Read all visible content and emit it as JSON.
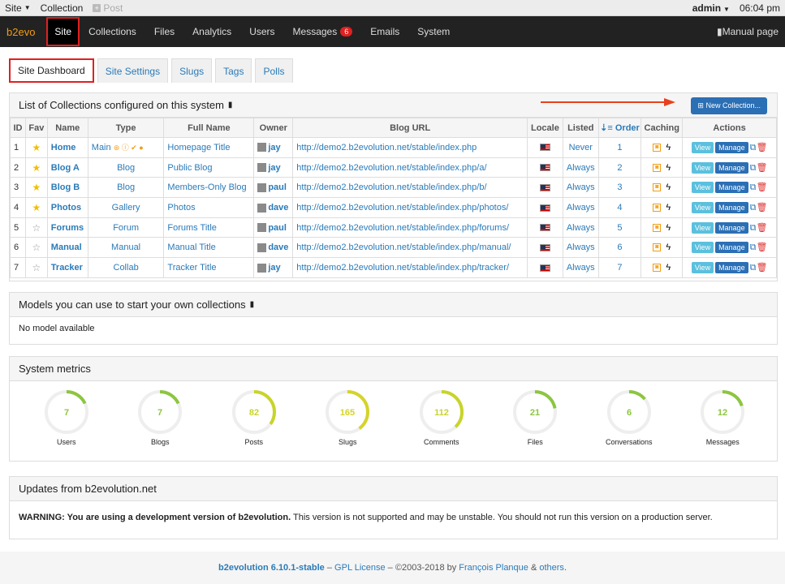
{
  "topbar": {
    "site": "Site",
    "collection": "Collection",
    "post": "Post",
    "user": "admin",
    "time": "06:04 pm"
  },
  "navbar": {
    "brand": "b2evo",
    "items": [
      "Site",
      "Collections",
      "Files",
      "Analytics",
      "Users",
      "Messages",
      "Emails",
      "System"
    ],
    "messages_count": "6",
    "manual": "Manual page"
  },
  "tabs": [
    "Site Dashboard",
    "Site Settings",
    "Slugs",
    "Tags",
    "Polls"
  ],
  "collections": {
    "title": "List of Collections configured on this system",
    "new_button": "New Collection...",
    "headers": [
      "ID",
      "Fav",
      "Name",
      "Type",
      "Full Name",
      "Owner",
      "Blog URL",
      "Locale",
      "Listed",
      "Order",
      "Caching",
      "Actions"
    ],
    "rows": [
      {
        "id": "1",
        "fav": "★",
        "name": "Home",
        "type": "Main",
        "fullname": "Homepage Title",
        "owner": "jay",
        "url": "http://demo2.b2evolution.net/stable/index.php",
        "listed": "Never",
        "order": "1"
      },
      {
        "id": "2",
        "fav": "★",
        "name": "Blog A",
        "type": "Blog",
        "fullname": "Public Blog",
        "owner": "jay",
        "url": "http://demo2.b2evolution.net/stable/index.php/a/",
        "listed": "Always",
        "order": "2"
      },
      {
        "id": "3",
        "fav": "★",
        "name": "Blog B",
        "type": "Blog",
        "fullname": "Members-Only Blog",
        "owner": "paul",
        "url": "http://demo2.b2evolution.net/stable/index.php/b/",
        "listed": "Always",
        "order": "3"
      },
      {
        "id": "4",
        "fav": "★",
        "name": "Photos",
        "type": "Gallery",
        "fullname": "Photos",
        "owner": "dave",
        "url": "http://demo2.b2evolution.net/stable/index.php/photos/",
        "listed": "Always",
        "order": "4"
      },
      {
        "id": "5",
        "fav": "☆",
        "name": "Forums",
        "type": "Forum",
        "fullname": "Forums Title",
        "owner": "paul",
        "url": "http://demo2.b2evolution.net/stable/index.php/forums/",
        "listed": "Always",
        "order": "5"
      },
      {
        "id": "6",
        "fav": "☆",
        "name": "Manual",
        "type": "Manual",
        "fullname": "Manual Title",
        "owner": "dave",
        "url": "http://demo2.b2evolution.net/stable/index.php/manual/",
        "listed": "Always",
        "order": "6"
      },
      {
        "id": "7",
        "fav": "☆",
        "name": "Tracker",
        "type": "Collab",
        "fullname": "Tracker Title",
        "owner": "jay",
        "url": "http://demo2.b2evolution.net/stable/index.php/tracker/",
        "listed": "Always",
        "order": "7"
      }
    ],
    "view_label": "View",
    "manage_label": "Manage"
  },
  "models": {
    "title": "Models you can use to start your own collections",
    "body": "No model available"
  },
  "metrics": {
    "title": "System metrics",
    "items": [
      {
        "value": "7",
        "label": "Users",
        "fill": 0.18,
        "color": "#8cc63f"
      },
      {
        "value": "7",
        "label": "Blogs",
        "fill": 0.18,
        "color": "#8cc63f"
      },
      {
        "value": "82",
        "label": "Posts",
        "fill": 0.35,
        "color": "#c8d42a"
      },
      {
        "value": "165",
        "label": "Slugs",
        "fill": 0.4,
        "color": "#d4d42a"
      },
      {
        "value": "112",
        "label": "Comments",
        "fill": 0.38,
        "color": "#c8d42a"
      },
      {
        "value": "21",
        "label": "Files",
        "fill": 0.22,
        "color": "#8cc63f"
      },
      {
        "value": "6",
        "label": "Conversations",
        "fill": 0.14,
        "color": "#8cc63f"
      },
      {
        "value": "12",
        "label": "Messages",
        "fill": 0.2,
        "color": "#8cc63f"
      }
    ]
  },
  "updates": {
    "title": "Updates from b2evolution.net",
    "warning_bold": "WARNING: You are using a development version of b2evolution.",
    "warning_rest": " This version is not supported and may be unstable. You should not run this version on a production server."
  },
  "footer": {
    "version": "b2evolution 6.10.1-stable",
    "dash1": " – ",
    "license": "GPL License",
    "copy": " – ©2003-2018 by ",
    "author": "François Planque",
    "amp": " & ",
    "others": "others",
    "dot": "."
  }
}
